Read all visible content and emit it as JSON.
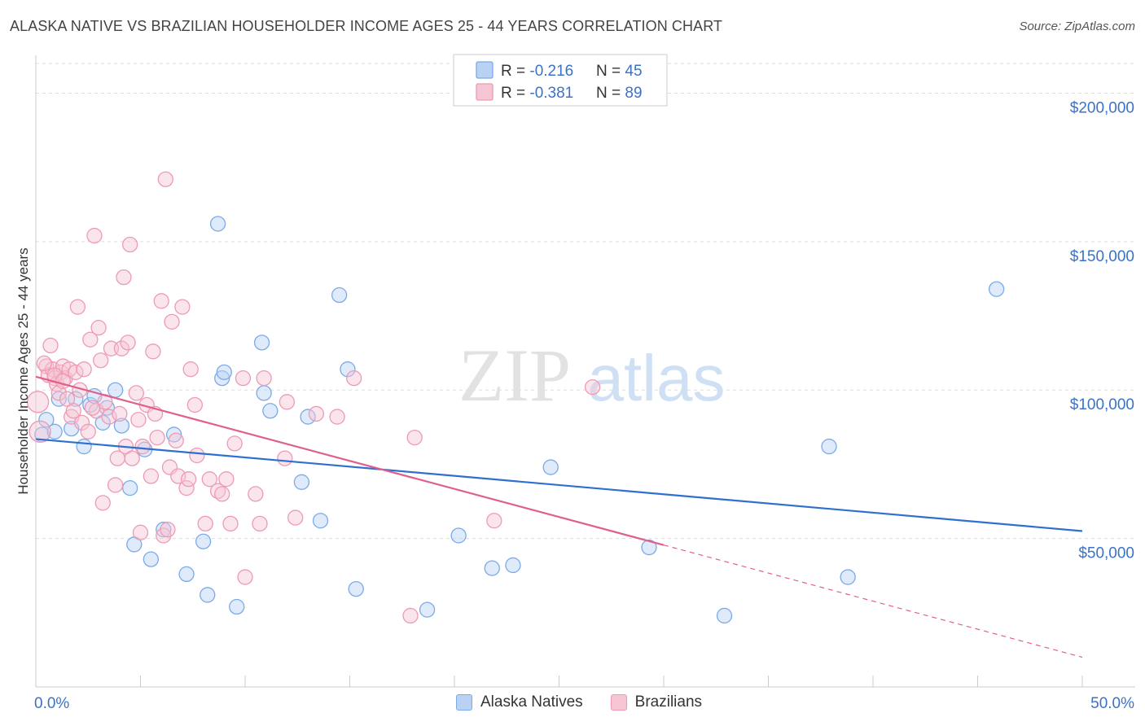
{
  "title": "ALASKA NATIVE VS BRAZILIAN HOUSEHOLDER INCOME AGES 25 - 44 YEARS CORRELATION CHART",
  "source": "Source: ZipAtlas.com",
  "watermark": {
    "zip": "ZIP",
    "atlas": "atlas"
  },
  "chart_data": {
    "type": "scatter",
    "title": "ALASKA NATIVE VS BRAZILIAN HOUSEHOLDER INCOME AGES 25 - 44 YEARS CORRELATION CHART",
    "xlabel": "",
    "ylabel": "Householder Income Ages 25 - 44 years",
    "xlim": [
      0,
      50
    ],
    "ylim": [
      0,
      210000
    ],
    "x_tick_labels": [
      "0.0%",
      "50.0%"
    ],
    "y_ticks": [
      50000,
      100000,
      150000,
      200000
    ],
    "y_tick_labels": [
      "$50,000",
      "$100,000",
      "$150,000",
      "$200,000"
    ],
    "grid": "horizontal dashed",
    "legend_placement": "top-center and bottom",
    "stats_legend": [
      {
        "r_label": "R =",
        "r_value": "-0.216",
        "n_label": "N =",
        "n_value": "45"
      },
      {
        "r_label": "R =",
        "r_value": "-0.381",
        "n_label": "N =",
        "n_value": "89"
      }
    ],
    "series": [
      {
        "name": "Alaska Natives",
        "color": "#7aaae8",
        "fill": "#b9d2f3",
        "trend_color": "#2f6fcf",
        "trend": {
          "x0": 0,
          "y0": 83500,
          "x1": 50,
          "y1": 52500,
          "solid_until": 50
        },
        "points": [
          [
            0.3,
            85000
          ],
          [
            0.5,
            90000
          ],
          [
            0.9,
            86000
          ],
          [
            1.1,
            97000
          ],
          [
            1.7,
            87000
          ],
          [
            1.9,
            97000
          ],
          [
            2.3,
            81000
          ],
          [
            2.6,
            95000
          ],
          [
            2.8,
            98000
          ],
          [
            3.2,
            89000
          ],
          [
            3.4,
            94000
          ],
          [
            3.8,
            100000
          ],
          [
            4.1,
            88000
          ],
          [
            4.5,
            67000
          ],
          [
            4.7,
            48000
          ],
          [
            5.2,
            80000
          ],
          [
            5.5,
            43000
          ],
          [
            6.1,
            53000
          ],
          [
            6.6,
            85000
          ],
          [
            7.2,
            38000
          ],
          [
            8.0,
            49000
          ],
          [
            8.2,
            31000
          ],
          [
            8.7,
            156000
          ],
          [
            8.9,
            104000
          ],
          [
            9.0,
            106000
          ],
          [
            9.6,
            27000
          ],
          [
            10.8,
            116000
          ],
          [
            10.9,
            99000
          ],
          [
            11.2,
            93000
          ],
          [
            12.7,
            69000
          ],
          [
            13.0,
            91000
          ],
          [
            13.6,
            56000
          ],
          [
            14.5,
            132000
          ],
          [
            14.9,
            107000
          ],
          [
            15.3,
            33000
          ],
          [
            18.7,
            26000
          ],
          [
            20.2,
            51000
          ],
          [
            21.8,
            40000
          ],
          [
            22.8,
            41000
          ],
          [
            24.6,
            74000
          ],
          [
            29.3,
            47000
          ],
          [
            32.9,
            24000
          ],
          [
            37.9,
            81000
          ],
          [
            38.8,
            37000
          ],
          [
            45.9,
            134000
          ]
        ]
      },
      {
        "name": "Brazilians",
        "color": "#ee9ab4",
        "fill": "#f6c5d4",
        "trend_color": "#e0608c",
        "trend": {
          "x0": 0,
          "y0": 104500,
          "x1": 50,
          "y1": 10000,
          "solid_until": 30
        },
        "points": [
          [
            0.1,
            96000
          ],
          [
            0.2,
            86000
          ],
          [
            0.5,
            108000
          ],
          [
            0.6,
            105000
          ],
          [
            0.7,
            115000
          ],
          [
            0.8,
            107000
          ],
          [
            0.9,
            104000
          ],
          [
            1.0,
            102000
          ],
          [
            1.1,
            99000
          ],
          [
            1.2,
            106000
          ],
          [
            1.3,
            108000
          ],
          [
            1.4,
            104000
          ],
          [
            1.5,
            97000
          ],
          [
            1.6,
            107000
          ],
          [
            1.7,
            91000
          ],
          [
            1.8,
            93000
          ],
          [
            1.9,
            106000
          ],
          [
            2.0,
            128000
          ],
          [
            2.1,
            100000
          ],
          [
            2.2,
            89000
          ],
          [
            2.3,
            107000
          ],
          [
            2.5,
            86000
          ],
          [
            2.6,
            117000
          ],
          [
            2.8,
            152000
          ],
          [
            2.9,
            93000
          ],
          [
            3.0,
            121000
          ],
          [
            3.1,
            110000
          ],
          [
            3.2,
            62000
          ],
          [
            3.3,
            96000
          ],
          [
            3.5,
            91000
          ],
          [
            3.6,
            114000
          ],
          [
            3.8,
            68000
          ],
          [
            3.9,
            77000
          ],
          [
            4.0,
            92000
          ],
          [
            4.1,
            114000
          ],
          [
            4.2,
            138000
          ],
          [
            4.3,
            81000
          ],
          [
            4.4,
            116000
          ],
          [
            4.5,
            149000
          ],
          [
            4.6,
            77000
          ],
          [
            4.8,
            99000
          ],
          [
            5.0,
            52000
          ],
          [
            5.1,
            81000
          ],
          [
            5.3,
            95000
          ],
          [
            5.5,
            71000
          ],
          [
            5.6,
            113000
          ],
          [
            5.7,
            92000
          ],
          [
            5.8,
            84000
          ],
          [
            6.0,
            130000
          ],
          [
            6.1,
            51000
          ],
          [
            6.2,
            171000
          ],
          [
            6.4,
            74000
          ],
          [
            6.5,
            123000
          ],
          [
            6.7,
            83000
          ],
          [
            6.8,
            71000
          ],
          [
            7.0,
            128000
          ],
          [
            7.2,
            67000
          ],
          [
            7.3,
            70000
          ],
          [
            7.4,
            107000
          ],
          [
            7.6,
            95000
          ],
          [
            7.7,
            78000
          ],
          [
            8.1,
            55000
          ],
          [
            8.3,
            70000
          ],
          [
            8.7,
            66000
          ],
          [
            8.9,
            65000
          ],
          [
            9.1,
            70000
          ],
          [
            9.3,
            55000
          ],
          [
            9.5,
            82000
          ],
          [
            9.9,
            104000
          ],
          [
            10.0,
            37000
          ],
          [
            10.5,
            65000
          ],
          [
            10.7,
            55000
          ],
          [
            10.9,
            104000
          ],
          [
            11.9,
            77000
          ],
          [
            12.0,
            96000
          ],
          [
            12.4,
            57000
          ],
          [
            13.4,
            92000
          ],
          [
            14.4,
            91000
          ],
          [
            15.2,
            104000
          ],
          [
            17.9,
            24000
          ],
          [
            18.1,
            84000
          ],
          [
            21.9,
            56000
          ],
          [
            26.6,
            101000
          ],
          [
            0.4,
            109000
          ],
          [
            0.9,
            105000
          ],
          [
            1.3,
            103000
          ],
          [
            2.7,
            94000
          ],
          [
            4.9,
            90000
          ],
          [
            6.3,
            53000
          ]
        ]
      }
    ]
  }
}
